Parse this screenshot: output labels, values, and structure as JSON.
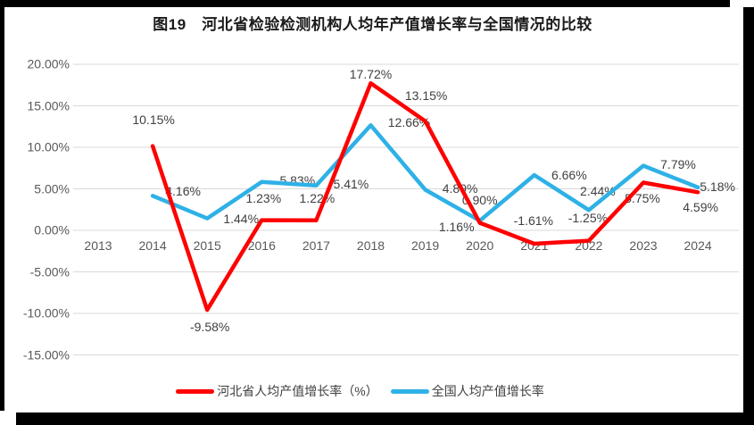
{
  "colors": {
    "hebei_line": "#FF0000",
    "national_line": "#2EB1E6",
    "gridline": "#D9D9D9",
    "axis_text": "#595959",
    "label_text": "#404040",
    "frame": "#000000",
    "background": "#FFFFFF"
  },
  "chart_data": {
    "type": "line",
    "title": "图19　河北省检验检测机构人均年产值增长率与全国情况的比较",
    "categories": [
      "2013",
      "2014",
      "2015",
      "2016",
      "2017",
      "2018",
      "2019",
      "2020",
      "2021",
      "2022",
      "2023",
      "2024"
    ],
    "series": [
      {
        "id": "hebei",
        "name": "河北省人均产值增长率（%）",
        "color": "#FF0000",
        "x": [
          "2014",
          "2015",
          "2016",
          "2017",
          "2018",
          "2019",
          "2020",
          "2021",
          "2022",
          "2023",
          "2024"
        ],
        "values": [
          10.15,
          -9.58,
          1.23,
          1.22,
          17.72,
          13.15,
          0.9,
          -1.61,
          -1.25,
          5.75,
          4.59
        ],
        "labels": [
          "10.15%",
          "-9.58%",
          "1.23%",
          "1.22%",
          "17.72%",
          "13.15%",
          "0.90%",
          "-1.61%",
          "-1.25%",
          "5.75%",
          "4.59%"
        ]
      },
      {
        "id": "national",
        "name": "全国人均产值增长率",
        "color": "#2EB1E6",
        "x": [
          "2014",
          "2015",
          "2016",
          "2017",
          "2018",
          "2019",
          "2020",
          "2021",
          "2022",
          "2023",
          "2024"
        ],
        "values": [
          4.16,
          1.44,
          5.83,
          5.41,
          12.66,
          4.89,
          1.16,
          6.66,
          2.44,
          7.79,
          5.18
        ],
        "labels": [
          "4.16%",
          "1.44%",
          "5.83%",
          "5.41%",
          "12.66%",
          "4.89%",
          "1.16%",
          "6.66%",
          "2.44%",
          "7.79%",
          "5.18%"
        ]
      }
    ],
    "y_axis": {
      "min": -15,
      "max": 20,
      "step": 5,
      "tick_labels": [
        "20.00%",
        "15.00%",
        "10.00%",
        "5.00%",
        "0.00%",
        "-5.00%",
        "-10.00%",
        "-15.00%"
      ]
    },
    "grid": true,
    "legend_position": "bottom"
  }
}
